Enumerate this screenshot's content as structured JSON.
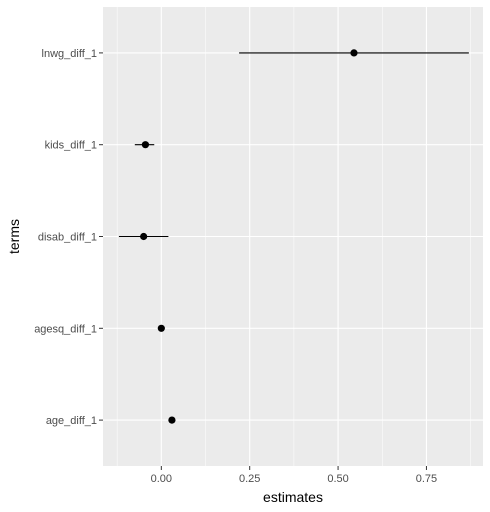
{
  "chart_data": {
    "type": "scatter",
    "subtype": "coefficient-plot-with-error-bars",
    "xlabel": "estimates",
    "ylabel": "terms",
    "xlim": [
      -0.165,
      0.91
    ],
    "x_ticks": [
      0,
      0.25,
      0.5,
      0.75
    ],
    "x_tick_labels": [
      "0.00",
      "0.25",
      "0.50",
      "0.75"
    ],
    "categories": [
      "age_diff_1",
      "agesq_diff_1",
      "disab_diff_1",
      "kids_diff_1",
      "lnwg_diff_1"
    ],
    "points": [
      {
        "term": "age_diff_1",
        "estimate": 0.03,
        "lower": 0.022,
        "upper": 0.038
      },
      {
        "term": "agesq_diff_1",
        "estimate": 0.0,
        "lower": -0.003,
        "upper": 0.003
      },
      {
        "term": "disab_diff_1",
        "estimate": -0.05,
        "lower": -0.12,
        "upper": 0.02
      },
      {
        "term": "kids_diff_1",
        "estimate": -0.045,
        "lower": -0.075,
        "upper": -0.02
      },
      {
        "term": "lnwg_diff_1",
        "estimate": 0.545,
        "lower": 0.22,
        "upper": 0.87
      }
    ],
    "grid": true,
    "background_color": "#ebebeb",
    "grid_color": "#ffffff",
    "point_color": "#000000"
  }
}
